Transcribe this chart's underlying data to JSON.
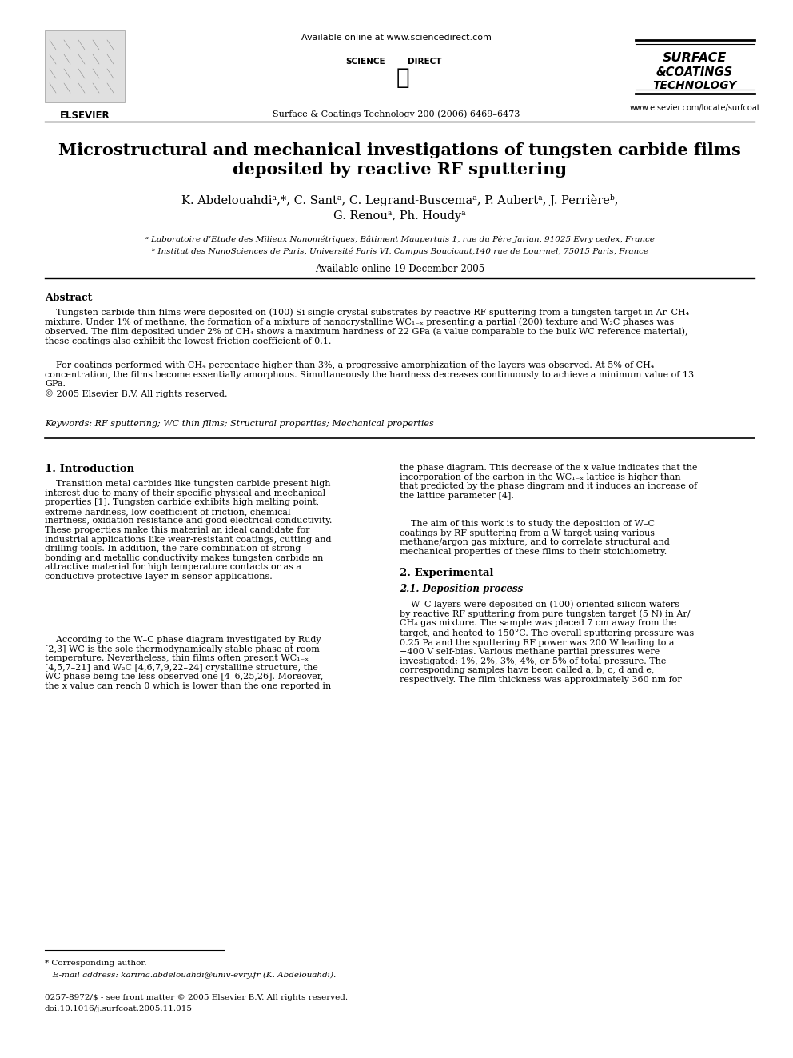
{
  "page_bg": "#ffffff",
  "title_line1": "Microstructural and mechanical investigations of tungsten carbide films",
  "title_line2": "deposited by reactive RF sputtering",
  "authors": "K. Abdelouahdiᵃ,*, C. Santᵃ, C. Legrand-Buscemaᵃ, P. Aubertᵃ, J. Perrièreᵇ,",
  "authors2": "G. Renouᵃ, Ph. Houdyᵃ",
  "affil_a": "ᵃ Laboratoire d’Etude des Milieux Nanométriques, Bâtiment Maupertuis 1, rue du Père Jarlan, 91025 Evry cedex, France",
  "affil_b": "ᵇ Institut des NanoSciences de Paris, Université Paris VI, Campus Boucicaut,140 rue de Lourmel, 75015 Paris, France",
  "available_online": "Available online 19 December 2005",
  "journal_header": "Available online at www.sciencedirect.com",
  "journal_citation": "Surface & Coatings Technology 200 (2006) 6469–6473",
  "journal_url": "www.elsevier.com/locate/surfcoat",
  "abstract_title": "Abstract",
  "keywords_line": "Keywords: RF sputtering; WC thin films; Structural properties; Mechanical properties",
  "section1_title": "1. Introduction",
  "section2_title": "2. Experimental",
  "section21_title": "2.1. Deposition process",
  "footnote_star": "* Corresponding author.",
  "footnote_email": "   E-mail address: karima.abdelouahdi@univ-evry.fr (K. Abdelouahdi).",
  "footnote_issn": "0257-8972/$ - see front matter © 2005 Elsevier B.V. All rights reserved.",
  "footnote_doi": "doi:10.1016/j.surfcoat.2005.11.015",
  "figw": 9.92,
  "figh": 13.23,
  "dpi": 100
}
